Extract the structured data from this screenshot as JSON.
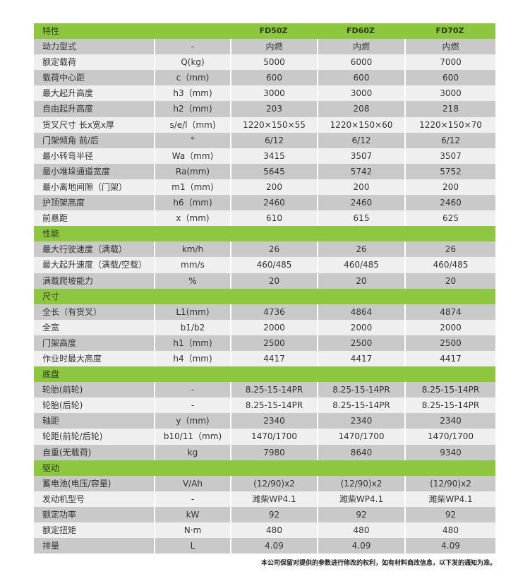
{
  "colors": {
    "header_green": "#8dc63f",
    "row_gray": "#c9c9c9",
    "row_light": "#efefef"
  },
  "header": {
    "label": "特性",
    "models": [
      "FD50Z",
      "FD60Z",
      "FD70Z"
    ]
  },
  "sections": [
    {
      "title": "",
      "rows": [
        [
          "动力型式",
          "-",
          "内燃",
          "内燃",
          "内燃"
        ],
        [
          "额定载荷",
          "Q(kg)",
          "5000",
          "6000",
          "7000"
        ],
        [
          "载荷中心距",
          "c（mm)",
          "600",
          "600",
          "600"
        ],
        [
          "最大起升高度",
          "h3（mm)",
          "3000",
          "3000",
          "3000"
        ],
        [
          "自由起升高度",
          "h2（mm)",
          "203",
          "208",
          "218"
        ],
        [
          "货叉尺寸 长x宽x厚",
          "s/e/l（mm)",
          "1220×150×55",
          "1220×150×60",
          "1220×150×70"
        ],
        [
          "门架倾角 前/后",
          "°",
          "6/12",
          "6/12",
          "6/12"
        ],
        [
          "最小转弯半径",
          "Wa（mm)",
          "3415",
          "3507",
          "3507"
        ],
        [
          "最小堆垛通道宽度",
          "Ra(mm)",
          "5645",
          "5742",
          "5752"
        ],
        [
          "最小离地间隙（门架）",
          "m1（mm)",
          "200",
          "200",
          "200"
        ],
        [
          "护顶架高度",
          "h6（mm)",
          "2460",
          "2460",
          "2460"
        ],
        [
          "前悬距",
          "x（mm)",
          "610",
          "615",
          "625"
        ]
      ]
    },
    {
      "title": "性能",
      "rows": [
        [
          "最大行驶速度（满载）",
          "km/h",
          "26",
          "26",
          "26"
        ],
        [
          "最大起升速度（满载/空载）",
          "mm/s",
          "460/485",
          "460/485",
          "460/485"
        ],
        [
          "满载爬坡能力",
          "%",
          "20",
          "20",
          "20"
        ]
      ]
    },
    {
      "title": "尺寸",
      "rows": [
        [
          "全长（有货叉）",
          "L1(mm)",
          "4736",
          "4864",
          "4874"
        ],
        [
          "全宽",
          "b1/b2",
          "2000",
          "2000",
          "2000"
        ],
        [
          "门架高度",
          "h1（mm)",
          "2500",
          "2500",
          "2500"
        ],
        [
          "作业时最大高度",
          "h4（mm)",
          "4417",
          "4417",
          "4417"
        ]
      ]
    },
    {
      "title": "底盘",
      "rows": [
        [
          "轮胎(前轮)",
          "-",
          "8.25-15-14PR",
          "8.25-15-14PR",
          "8.25-15-14PR"
        ],
        [
          "轮胎(后轮)",
          "-",
          "8.25-15-14PR",
          "8.25-15-14PR",
          "8.25-15-14PR"
        ],
        [
          "轴距",
          "y（mm)",
          "2340",
          "2340",
          "2340"
        ],
        [
          "轮距(前轮/后轮)",
          "b10/11（mm)",
          "1470/1700",
          "1470/1700",
          "1470/1700"
        ],
        [
          "自重(无载荷)",
          "kg",
          "7980",
          "8640",
          "9340"
        ]
      ]
    },
    {
      "title": "驱动",
      "rows": [
        [
          "蓄电池(电压/容量)",
          "V/Ah",
          "(12/90)x2",
          "(12/90)x2",
          "(12/90)x2"
        ],
        [
          "发动机型号",
          "-",
          "潍柴WP4.1",
          "潍柴WP4.1",
          "潍柴WP4.1"
        ],
        [
          "额定功率",
          "kW",
          "92",
          "92",
          "92"
        ],
        [
          "额定扭矩",
          "N·m",
          "480",
          "480",
          "480"
        ],
        [
          "排量",
          "L",
          "4.09",
          "4.09",
          "4.09"
        ]
      ]
    }
  ],
  "note": "本公司保留对提供的参数进行修改的权利，如有材料商改信息，以下发的通知为准。"
}
